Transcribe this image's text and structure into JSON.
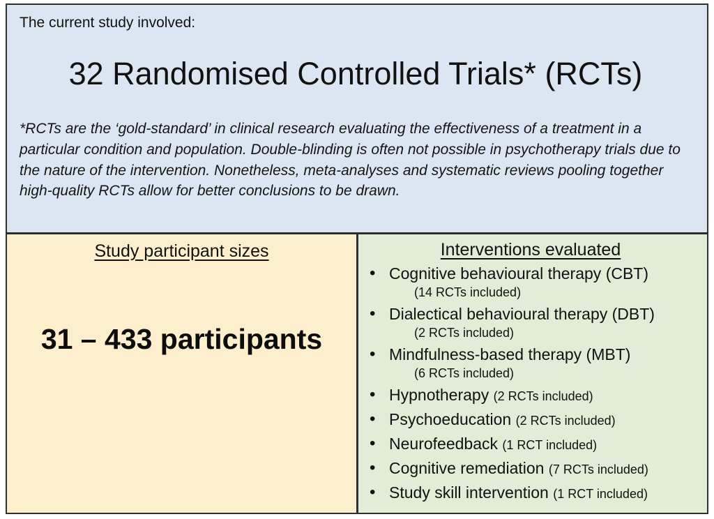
{
  "colors": {
    "top_bg": "#dce6f2",
    "participants_bg": "#fdeecd",
    "interventions_bg": "#e2edd8",
    "border": "#2f2f2f"
  },
  "top": {
    "intro": "The current study involved:",
    "title": "32 Randomised Controlled Trials* (RCTs)",
    "footnote": "*RCTs are the ‘gold-standard’ in clinical research evaluating the effectiveness of a treatment in a particular condition and population. Double-blinding is often not possible in psychotherapy trials due to the nature of the intervention. Nonetheless, meta-analyses and systematic reviews pooling together high-quality RCTs allow for better conclusions to be drawn."
  },
  "participants": {
    "header": "Study participant sizes",
    "value": "31 – 433 participants"
  },
  "interventions": {
    "header": "Interventions evaluated",
    "items": [
      {
        "name": "Cognitive behavioural therapy (CBT)",
        "detail": "(14 RCTs included)"
      },
      {
        "name": "Dialectical behavioural therapy (DBT)",
        "detail": "(2 RCTs included)"
      },
      {
        "name": "Mindfulness-based therapy (MBT)",
        "detail": "(6 RCTs included)"
      },
      {
        "name": "Hypnotherapy",
        "detail": "(2 RCTs included)"
      },
      {
        "name": "Psychoeducation",
        "detail": "(2 RCTs included)"
      },
      {
        "name": "Neurofeedback",
        "detail": "(1 RCT included)"
      },
      {
        "name": "Cognitive remediation",
        "detail": "(7 RCTs included)"
      },
      {
        "name": "Study skill intervention",
        "detail": "(1 RCT included)"
      }
    ]
  }
}
